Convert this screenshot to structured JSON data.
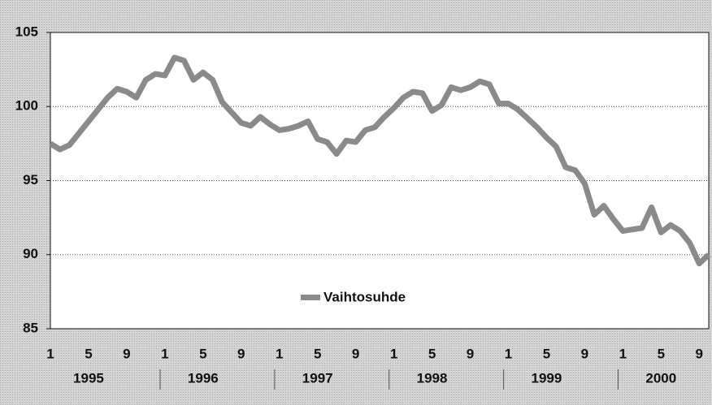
{
  "chart_data": {
    "type": "line",
    "categories": [
      "1",
      null,
      null,
      null,
      "5",
      null,
      null,
      null,
      "9",
      null,
      null,
      null,
      "1",
      null,
      null,
      null,
      "5",
      null,
      null,
      null,
      "9",
      null,
      null,
      null,
      "1",
      null,
      null,
      null,
      "5",
      null,
      null,
      null,
      "9",
      null,
      null,
      null,
      "1",
      null,
      null,
      null,
      "5",
      null,
      null,
      null,
      "9",
      null,
      null,
      null,
      "1",
      null,
      null,
      null,
      "5",
      null,
      null,
      null,
      "9",
      null,
      null,
      null,
      "1",
      null,
      null,
      null,
      "5",
      null,
      null,
      null,
      "9",
      null
    ],
    "years": [
      "1995",
      "1996",
      "1997",
      "1998",
      "1999",
      "2000"
    ],
    "series": [
      {
        "name": "Vaihtosuhde",
        "color": "#8a8a8a",
        "values": [
          97.5,
          97.1,
          97.4,
          98.2,
          99.0,
          99.8,
          100.6,
          101.2,
          101.0,
          100.6,
          101.8,
          102.2,
          102.1,
          103.3,
          103.1,
          101.8,
          102.3,
          101.8,
          100.3,
          99.6,
          98.9,
          98.7,
          99.3,
          98.8,
          98.4,
          98.5,
          98.7,
          99.0,
          97.8,
          97.6,
          96.8,
          97.7,
          97.6,
          98.4,
          98.6,
          99.3,
          99.9,
          100.6,
          101.0,
          100.9,
          99.7,
          100.1,
          101.3,
          101.1,
          101.3,
          101.7,
          101.5,
          100.2,
          100.2,
          99.8,
          99.2,
          98.6,
          97.9,
          97.3,
          95.9,
          95.7,
          94.8,
          92.7,
          93.3,
          92.4,
          91.6,
          91.7,
          91.8,
          93.2,
          91.5,
          92.0,
          91.6,
          90.8,
          89.4,
          90.0
        ]
      }
    ],
    "ylim": [
      85,
      105
    ],
    "yticks": [
      85,
      90,
      95,
      100,
      105
    ],
    "grid": true
  }
}
